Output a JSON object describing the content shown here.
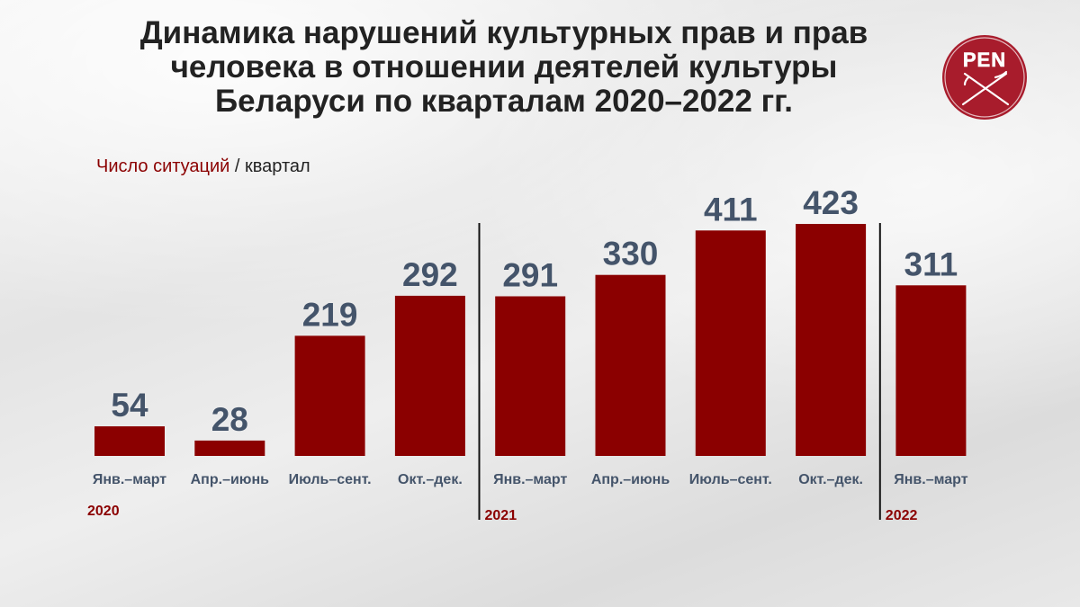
{
  "title": {
    "line1": "Динамика нарушений культурных прав и прав",
    "line2": "человека в отношении деятелей культуры",
    "line3": "Беларуси по кварталам 2020–2022 гг."
  },
  "subtitle": {
    "accent": "Число ситуаций",
    "separator": " / ",
    "rest": "квартал"
  },
  "logo": {
    "text": "PEN",
    "color": "#a81c2c"
  },
  "colors": {
    "bar": "#8b0000",
    "value_label": "#44546a",
    "category_label": "#44546a",
    "year_label": "#8b0000",
    "divider": "#111111"
  },
  "chart_data": {
    "type": "bar",
    "title": "Динамика нарушений культурных прав и прав человека в отношении деятелей культуры Беларуси по кварталам 2020–2022 гг.",
    "ylabel": "Число ситуаций / квартал",
    "categories": [
      "Янв.–март",
      "Апр.–июнь",
      "Июль–сент.",
      "Окт.–дек.",
      "Янв.–март",
      "Апр.–июнь",
      "Июль–сент.",
      "Окт.–дек.",
      "Янв.–март"
    ],
    "values": [
      54,
      28,
      219,
      292,
      291,
      330,
      411,
      423,
      311
    ],
    "years": [
      {
        "label": "2020",
        "start_index": 0
      },
      {
        "label": "2021",
        "start_index": 4
      },
      {
        "label": "2022",
        "start_index": 8
      }
    ],
    "data_labels": true,
    "grid": false,
    "legend": "none",
    "ylim": [
      0,
      450
    ]
  }
}
